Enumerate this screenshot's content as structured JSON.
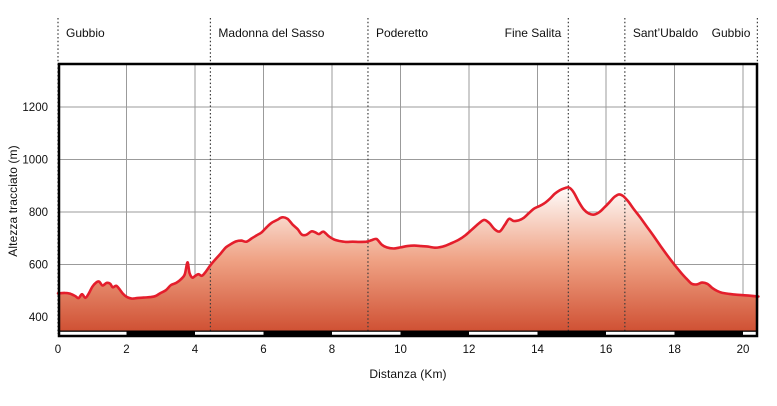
{
  "chart_data": {
    "type": "area",
    "title": "",
    "xlabel": "Distanza (Km)",
    "ylabel": "Altezza tracciato (m)",
    "x_ticks": [
      0,
      2,
      4,
      6,
      8,
      10,
      12,
      14,
      16,
      18,
      20
    ],
    "y_ticks": [
      400,
      600,
      800,
      1000,
      1200
    ],
    "xlim": [
      0,
      20.45
    ],
    "ylim": [
      330,
      1365
    ],
    "grid": true,
    "legend": "none",
    "waypoints": [
      {
        "name": "Gubbio",
        "km": 0,
        "side": "right"
      },
      {
        "name": "Madonna del Sasso",
        "km": 4.45,
        "side": "right"
      },
      {
        "name": "Poderetto",
        "km": 9.05,
        "side": "right"
      },
      {
        "name": "Fine Salita",
        "km": 14.9,
        "side": "left"
      },
      {
        "name": "Sant’Ubaldo",
        "km": 16.55,
        "side": "right"
      },
      {
        "name": "Gubbio",
        "km": 20.42,
        "side": "left"
      }
    ],
    "km_bar_white_segments": [
      [
        0,
        2
      ],
      [
        4,
        6
      ],
      [
        8,
        10
      ],
      [
        12,
        14
      ],
      [
        16,
        18
      ],
      [
        20,
        20.45
      ]
    ],
    "series": [
      {
        "name": "Altezza",
        "points": [
          [
            0,
            490
          ],
          [
            0.2,
            492
          ],
          [
            0.35,
            489
          ],
          [
            0.5,
            480
          ],
          [
            0.6,
            472
          ],
          [
            0.7,
            487
          ],
          [
            0.8,
            473
          ],
          [
            0.9,
            490
          ],
          [
            1.0,
            515
          ],
          [
            1.1,
            530
          ],
          [
            1.2,
            535
          ],
          [
            1.3,
            520
          ],
          [
            1.42,
            530
          ],
          [
            1.52,
            527
          ],
          [
            1.6,
            513
          ],
          [
            1.7,
            519
          ],
          [
            1.8,
            505
          ],
          [
            1.9,
            488
          ],
          [
            2.0,
            477
          ],
          [
            2.15,
            470
          ],
          [
            2.3,
            472
          ],
          [
            2.5,
            474
          ],
          [
            2.7,
            476
          ],
          [
            2.85,
            480
          ],
          [
            3.0,
            492
          ],
          [
            3.15,
            502
          ],
          [
            3.3,
            522
          ],
          [
            3.45,
            530
          ],
          [
            3.6,
            545
          ],
          [
            3.7,
            562
          ],
          [
            3.78,
            608
          ],
          [
            3.84,
            568
          ],
          [
            3.92,
            550
          ],
          [
            4.0,
            556
          ],
          [
            4.1,
            563
          ],
          [
            4.2,
            557
          ],
          [
            4.3,
            570
          ],
          [
            4.45,
            597
          ],
          [
            4.6,
            620
          ],
          [
            4.75,
            642
          ],
          [
            4.9,
            665
          ],
          [
            5.05,
            678
          ],
          [
            5.2,
            688
          ],
          [
            5.35,
            691
          ],
          [
            5.5,
            687
          ],
          [
            5.65,
            699
          ],
          [
            5.8,
            711
          ],
          [
            5.95,
            723
          ],
          [
            6.1,
            743
          ],
          [
            6.25,
            760
          ],
          [
            6.4,
            770
          ],
          [
            6.55,
            780
          ],
          [
            6.7,
            774
          ],
          [
            6.85,
            752
          ],
          [
            7.0,
            734
          ],
          [
            7.12,
            714
          ],
          [
            7.25,
            713
          ],
          [
            7.4,
            726
          ],
          [
            7.52,
            722
          ],
          [
            7.62,
            716
          ],
          [
            7.75,
            725
          ],
          [
            7.9,
            708
          ],
          [
            8.05,
            696
          ],
          [
            8.2,
            690
          ],
          [
            8.4,
            686
          ],
          [
            8.6,
            687
          ],
          [
            8.8,
            686
          ],
          [
            9.0,
            687
          ],
          [
            9.15,
            692
          ],
          [
            9.3,
            697
          ],
          [
            9.45,
            676
          ],
          [
            9.6,
            665
          ],
          [
            9.8,
            661
          ],
          [
            10.0,
            665
          ],
          [
            10.2,
            670
          ],
          [
            10.4,
            672
          ],
          [
            10.6,
            670
          ],
          [
            10.8,
            668
          ],
          [
            11.0,
            664
          ],
          [
            11.15,
            666
          ],
          [
            11.3,
            671
          ],
          [
            11.5,
            682
          ],
          [
            11.7,
            694
          ],
          [
            11.9,
            712
          ],
          [
            12.1,
            735
          ],
          [
            12.3,
            758
          ],
          [
            12.45,
            770
          ],
          [
            12.6,
            757
          ],
          [
            12.75,
            734
          ],
          [
            12.9,
            726
          ],
          [
            13.05,
            752
          ],
          [
            13.17,
            774
          ],
          [
            13.3,
            766
          ],
          [
            13.45,
            768
          ],
          [
            13.6,
            778
          ],
          [
            13.75,
            796
          ],
          [
            13.9,
            813
          ],
          [
            14.05,
            822
          ],
          [
            14.2,
            833
          ],
          [
            14.35,
            849
          ],
          [
            14.5,
            869
          ],
          [
            14.65,
            883
          ],
          [
            14.8,
            891
          ],
          [
            14.92,
            893
          ],
          [
            15.05,
            876
          ],
          [
            15.2,
            840
          ],
          [
            15.35,
            810
          ],
          [
            15.5,
            794
          ],
          [
            15.65,
            790
          ],
          [
            15.8,
            799
          ],
          [
            15.95,
            817
          ],
          [
            16.1,
            837
          ],
          [
            16.25,
            858
          ],
          [
            16.38,
            867
          ],
          [
            16.5,
            861
          ],
          [
            16.65,
            840
          ],
          [
            16.8,
            813
          ],
          [
            17.0,
            779
          ],
          [
            17.2,
            743
          ],
          [
            17.4,
            707
          ],
          [
            17.6,
            669
          ],
          [
            17.8,
            633
          ],
          [
            18.0,
            599
          ],
          [
            18.2,
            567
          ],
          [
            18.35,
            546
          ],
          [
            18.5,
            527
          ],
          [
            18.65,
            524
          ],
          [
            18.8,
            531
          ],
          [
            18.95,
            527
          ],
          [
            19.1,
            511
          ],
          [
            19.25,
            499
          ],
          [
            19.4,
            492
          ],
          [
            19.6,
            488
          ],
          [
            19.8,
            485
          ],
          [
            20.0,
            483
          ],
          [
            20.2,
            481
          ],
          [
            20.45,
            478
          ]
        ]
      }
    ],
    "colors": {
      "line": "#e41e2c",
      "fill_top": "#ffffff",
      "fill_mid": "#efa183",
      "fill_bottom": "#cd4a2d",
      "grid": "#9b9b9b",
      "frame": "#000000",
      "waypoint_line": "#3c3c3c",
      "text": "#101010"
    }
  }
}
